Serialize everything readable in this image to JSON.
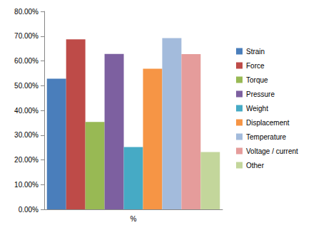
{
  "chart_data": {
    "type": "bar",
    "categories": [
      "%"
    ],
    "series": [
      {
        "name": "Strain",
        "color": "#4a7ebb",
        "values": [
          52.8
        ]
      },
      {
        "name": "Force",
        "color": "#be4b48",
        "values": [
          68.7
        ]
      },
      {
        "name": "Torque",
        "color": "#98b954",
        "values": [
          35.3
        ]
      },
      {
        "name": "Pressure",
        "color": "#7d60a0",
        "values": [
          62.8
        ]
      },
      {
        "name": "Weight",
        "color": "#46aac5",
        "values": [
          25.2
        ]
      },
      {
        "name": "Displacement",
        "color": "#f69545",
        "values": [
          56.8
        ]
      },
      {
        "name": "Temperature",
        "color": "#a3bbdc",
        "values": [
          69.2
        ]
      },
      {
        "name": "Voltage / current",
        "color": "#e59c9b",
        "values": [
          62.7
        ]
      },
      {
        "name": "Other",
        "color": "#c3d69b",
        "values": [
          23.2
        ]
      }
    ],
    "ylim": [
      0,
      80
    ],
    "yticks": [
      {
        "value": 0,
        "label": "0.00%"
      },
      {
        "value": 10,
        "label": "10.00%"
      },
      {
        "value": 20,
        "label": "20.00%"
      },
      {
        "value": 30,
        "label": "30.00%"
      },
      {
        "value": 40,
        "label": "40.00%"
      },
      {
        "value": 50,
        "label": "50.00%"
      },
      {
        "value": 60,
        "label": "60.00%"
      },
      {
        "value": 70,
        "label": "70.00%"
      },
      {
        "value": 80,
        "label": "80.00%"
      }
    ],
    "grid": false,
    "legend": "right"
  }
}
